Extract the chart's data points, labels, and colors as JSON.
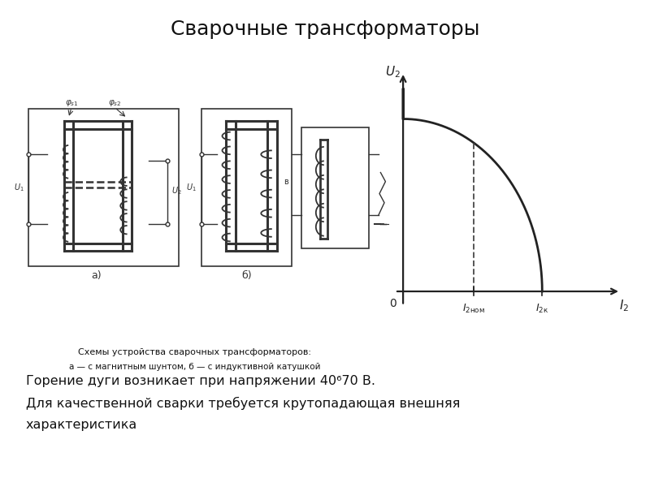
{
  "title": "Сварочные трансформаторы",
  "title_fontsize": 18,
  "bg_color": "#ffffff",
  "diagram_caption_line1": "Схемы устройства сварочных трансформаторов:",
  "diagram_caption_line2": "а — с магнитным шунтом, б — с индуктивной катушкой",
  "body_text_line1": "Горение дуги возникает при напряжении 40⁶70 В.",
  "body_text_line2": "Для качественной сварки требуется крутопадающая внешняя",
  "body_text_line3": "характеристика",
  "curve_color": "#222222",
  "curve_linewidth": 2.0,
  "dashed_color": "#555555",
  "dashed_linewidth": 1.4,
  "axes_linewidth": 1.6,
  "text_color": "#111111",
  "diagram_color": "#333333"
}
